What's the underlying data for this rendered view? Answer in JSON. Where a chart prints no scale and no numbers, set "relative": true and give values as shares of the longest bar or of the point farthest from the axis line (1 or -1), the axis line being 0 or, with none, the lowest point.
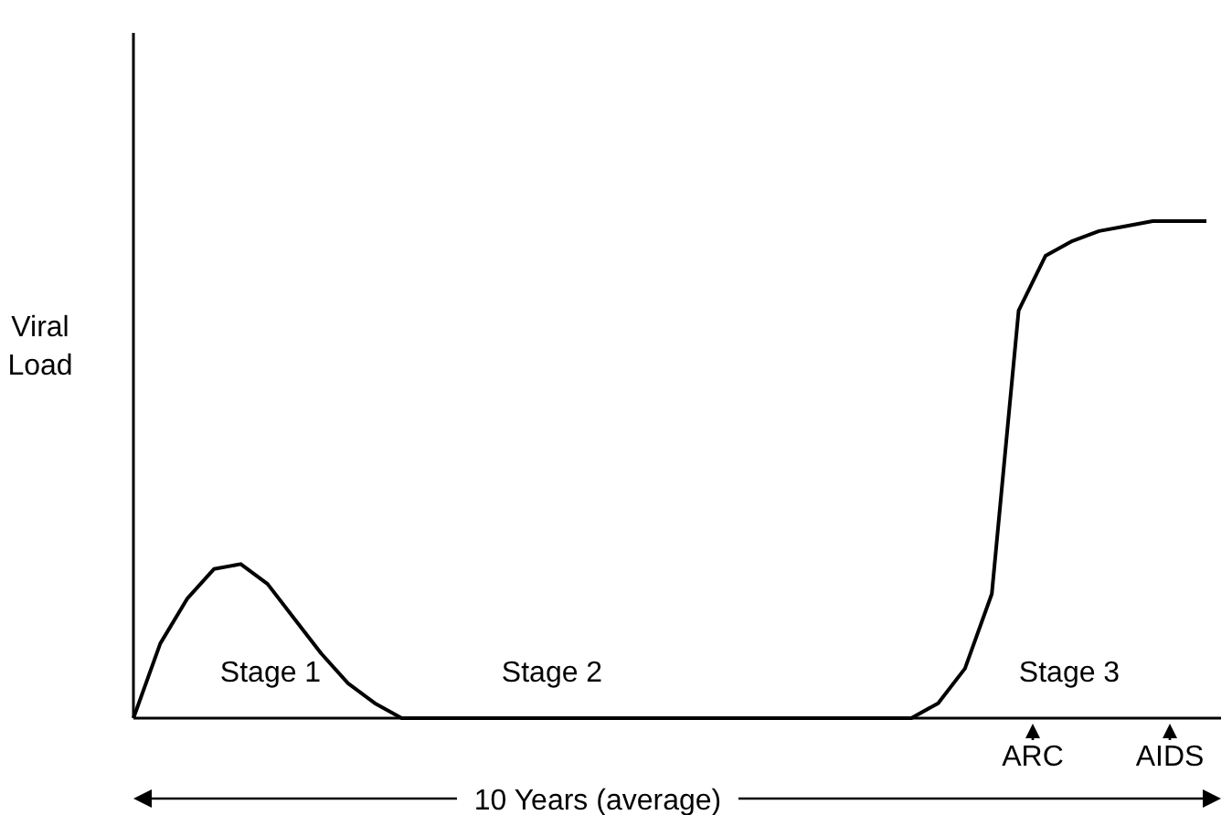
{
  "chart_data": {
    "type": "line",
    "relative": true,
    "ylabel": "Viral Load",
    "xlabel": "10 Years (average)",
    "color": "#000000",
    "marker": "none",
    "line_style": "solid",
    "categories": [
      null,
      null,
      null,
      null,
      null,
      null,
      null,
      null,
      null,
      null,
      null,
      null,
      null,
      null,
      null,
      null,
      null,
      null,
      null,
      null,
      null,
      null,
      null,
      null,
      null,
      null,
      null,
      null,
      null,
      null,
      null,
      null,
      null,
      null,
      null,
      null,
      null,
      null,
      null,
      null,
      null
    ],
    "values": [
      0,
      0.15,
      0.24,
      0.3,
      0.31,
      0.27,
      0.2,
      0.13,
      0.07,
      0.03,
      0,
      0,
      0,
      0,
      0,
      0,
      0,
      0,
      0,
      0,
      0,
      0,
      0,
      0,
      0,
      0,
      0,
      0,
      0,
      0,
      0.03,
      0.1,
      0.25,
      0.82,
      0.93,
      0.96,
      0.98,
      0.99,
      1,
      1,
      1
    ],
    "annotations": [
      "Stage 1",
      "Stage 2",
      "Stage 3",
      "ARC",
      "AIDS"
    ]
  }
}
